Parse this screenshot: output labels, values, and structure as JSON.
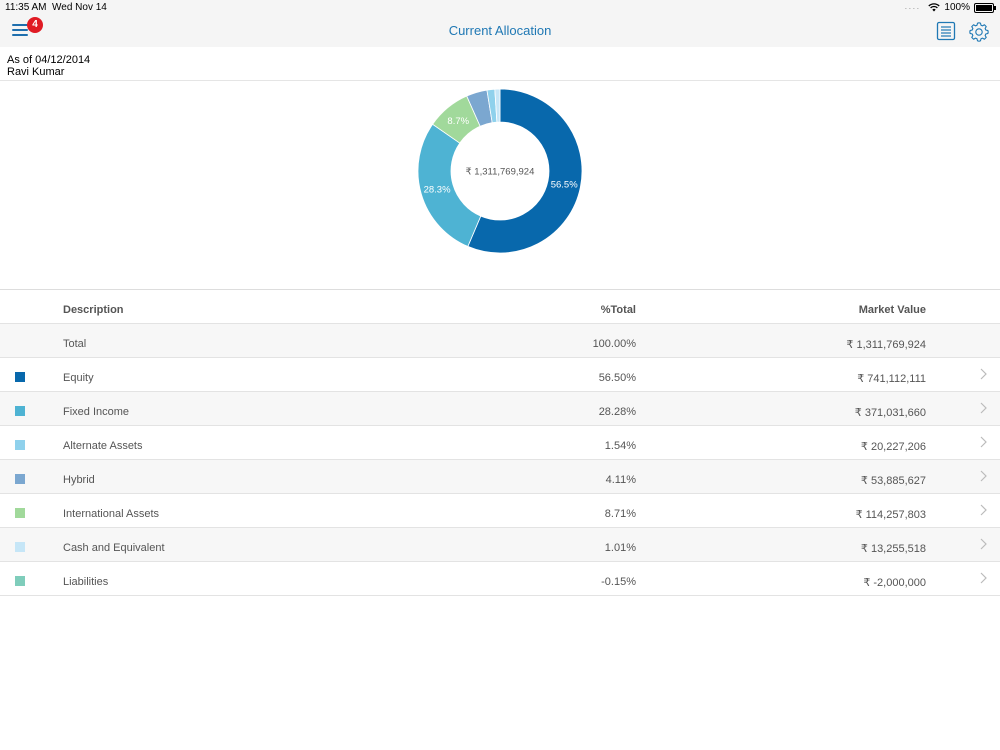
{
  "status": {
    "time": "11:35 AM",
    "date": "Wed Nov 14",
    "battery": "100%"
  },
  "nav": {
    "title": "Current Allocation",
    "badge": "4",
    "menu_icon": "hamburger-menu-icon",
    "report_icon": "document-list-icon",
    "settings_icon": "gear-icon"
  },
  "info": {
    "as_of": "As of 04/12/2014",
    "name": "Ravi Kumar"
  },
  "chart_data": {
    "type": "pie",
    "center_label": "₹ 1,311,769,924",
    "slices": [
      {
        "name": "Equity",
        "value": 56.5,
        "label": "56.5%",
        "color": "#0868ac"
      },
      {
        "name": "Fixed Income",
        "value": 28.28,
        "label": "28.3%",
        "color": "#4eb3d3"
      },
      {
        "name": "International Assets",
        "value": 8.71,
        "label": "8.7%",
        "color": "#a1d99b"
      },
      {
        "name": "Hybrid",
        "value": 4.11,
        "label": "",
        "color": "#7ba7d0"
      },
      {
        "name": "Alternate Assets",
        "value": 1.54,
        "label": "",
        "color": "#8fd1ec"
      },
      {
        "name": "Cash and Equivalent",
        "value": 1.01,
        "label": "",
        "color": "#c6e6f7"
      }
    ]
  },
  "table": {
    "headers": {
      "description": "Description",
      "pct": "%Total",
      "market_value": "Market Value"
    },
    "total": {
      "description": "Total",
      "pct": "100.00%",
      "market_value": "₹ 1,311,769,924"
    },
    "rows": [
      {
        "description": "Equity",
        "pct": "56.50%",
        "market_value": "₹ 741,112,111",
        "color": "#0868ac"
      },
      {
        "description": "Fixed Income",
        "pct": "28.28%",
        "market_value": "₹ 371,031,660",
        "color": "#4eb3d3"
      },
      {
        "description": "Alternate Assets",
        "pct": "1.54%",
        "market_value": "₹ 20,227,206",
        "color": "#8fd1ec"
      },
      {
        "description": "Hybrid",
        "pct": "4.11%",
        "market_value": "₹ 53,885,627",
        "color": "#7ba7d0"
      },
      {
        "description": "International Assets",
        "pct": "8.71%",
        "market_value": "₹ 114,257,803",
        "color": "#a1d99b"
      },
      {
        "description": "Cash and Equivalent",
        "pct": "1.01%",
        "market_value": "₹ 13,255,518",
        "color": "#c6e6f7"
      },
      {
        "description": "Liabilities",
        "pct": "-0.15%",
        "market_value": "₹ -2,000,000",
        "color": "#7fcdbb"
      }
    ]
  }
}
